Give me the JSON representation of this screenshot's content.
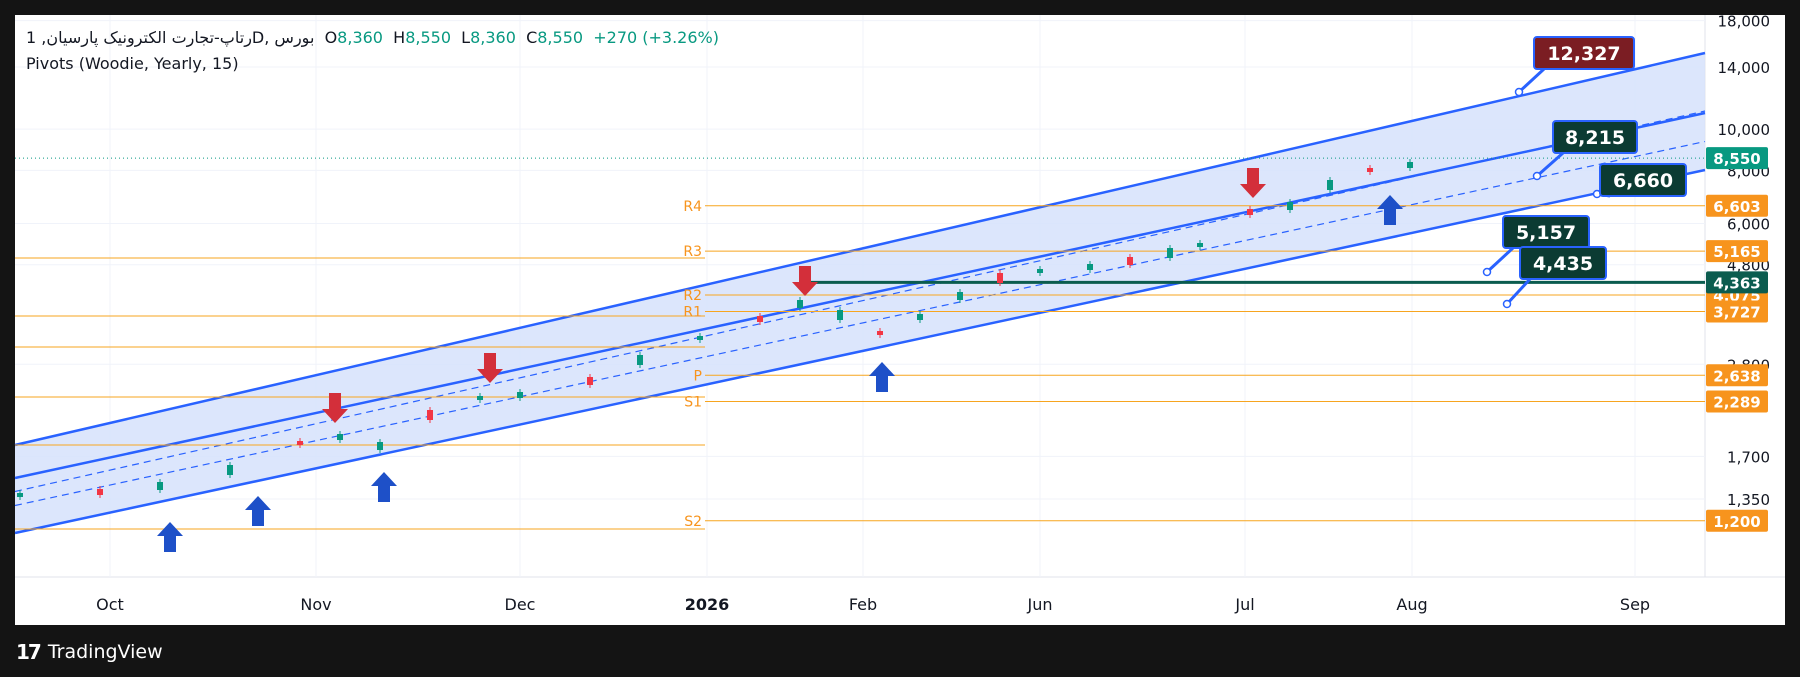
{
  "header": {
    "symbol": "رتاپ-تجارت الکترونیک  پارسیان, 1D, بورس",
    "open_label": "O",
    "open": "8,360",
    "high_label": "H",
    "high": "8,550",
    "low_label": "L",
    "low": "8,360",
    "close_label": "C",
    "close": "8,550",
    "change": "+270 (+3.26%)",
    "indicator": "Pivots (Woodie, Yearly, 15)"
  },
  "branding": {
    "logo_text": "TradingView",
    "logo_mark": "17",
    "logo_icon": "tradingview-logo-icon"
  },
  "colors": {
    "background": "#ffffff",
    "frame": "#141414",
    "up": "#089981",
    "down": "#f23645",
    "channel_line": "#2962ff",
    "channel_fill": "#d6e2fc",
    "pivot_line": "#f7a51f",
    "pivot_label": "#f7941d",
    "support_line": "#0b5c4f",
    "arrow_up": "#1e50c8",
    "arrow_down": "#d32f3a",
    "callout_dark": "#0b3b33",
    "callout_red": "#7b1d23"
  },
  "chart_data": {
    "type": "candlestick",
    "x_ticks": [
      "Oct",
      "Nov",
      "Dec",
      "2026",
      "Feb",
      "Jun",
      "Jul",
      "Aug",
      "Sep"
    ],
    "y_scale": "log",
    "y_ticks": [
      "18,000",
      "14,000",
      "10,000",
      "8,000",
      "6,000",
      "4,800",
      "2,800",
      "1,700",
      "1,350"
    ],
    "last_price": {
      "value": 8550,
      "label": "8,550"
    },
    "pivots": [
      {
        "name": "R4",
        "value": 6603,
        "label": "6,603"
      },
      {
        "name": "R3",
        "value": 5165,
        "label": "5,165"
      },
      {
        "name": "R2",
        "value": 4075,
        "label": "4,075"
      },
      {
        "name": "R1",
        "value": 3727,
        "label": "3,727"
      },
      {
        "name": "P",
        "value": 2638,
        "label": "2,638"
      },
      {
        "name": "S1",
        "value": 2289,
        "label": "2,289"
      },
      {
        "name": "S2",
        "value": 1200,
        "label": "1,200"
      }
    ],
    "support_level": {
      "value": 4363,
      "label": "4,363"
    },
    "callouts": [
      {
        "label": "12,327",
        "style": "red"
      },
      {
        "label": "8,215",
        "style": "dark"
      },
      {
        "label": "6,660",
        "style": "dark"
      },
      {
        "label": "5,157",
        "style": "dark"
      },
      {
        "label": "4,435",
        "style": "dark"
      }
    ],
    "arrows": [
      {
        "dir": "up",
        "at": "Oct"
      },
      {
        "dir": "up",
        "at": "Oct"
      },
      {
        "dir": "down",
        "at": "Nov"
      },
      {
        "dir": "up",
        "at": "Nov"
      },
      {
        "dir": "down",
        "at": "Dec"
      },
      {
        "dir": "down",
        "at": "2026"
      },
      {
        "dir": "up",
        "at": "Feb"
      },
      {
        "dir": "down",
        "at": "Jul"
      },
      {
        "dir": "up",
        "at": "Aug"
      }
    ]
  }
}
